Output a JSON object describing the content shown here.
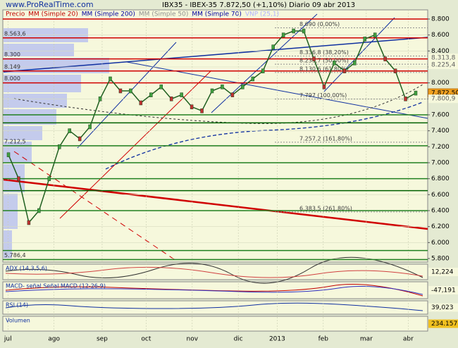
{
  "chart_data": {
    "type": "line",
    "watermark": "www.ProRealTime.com",
    "title": "IBX35 - IBEX-35   7.872,50 (+1,10%)   Diario 09 abr 2013",
    "legend": [
      "Precio",
      "MM (Simple 20)",
      "MM (Simple 200)",
      "MM (Simple 50)",
      "MM (Simple 70)",
      "VNP (25,1)"
    ],
    "legend_colors": [
      "#c00000",
      "#c00000",
      "#0000a0",
      "#909090",
      "#0000a0",
      "#b0b0ff"
    ],
    "xlim": [
      -0.5,
      41
    ],
    "xticks": [
      {
        "value": 0,
        "label": "jul"
      },
      {
        "value": 4.5,
        "label": "ago"
      },
      {
        "value": 9.2,
        "label": "sep"
      },
      {
        "value": 13.5,
        "label": "oct"
      },
      {
        "value": 18,
        "label": "nov"
      },
      {
        "value": 22.5,
        "label": "dic"
      },
      {
        "value": 26.3,
        "label": "2013"
      },
      {
        "value": 30.8,
        "label": "feb"
      },
      {
        "value": 35,
        "label": "mar"
      },
      {
        "value": 39.1,
        "label": "abr"
      }
    ],
    "ylim": [
      5800,
      8800
    ],
    "yticks": [
      {
        "value": 8800,
        "label": "8.800"
      },
      {
        "value": 8600,
        "label": "8.600"
      },
      {
        "value": 8400,
        "label": "8.400"
      },
      {
        "value": 8200,
        "label": "8.200"
      },
      {
        "value": 8000,
        "label": "8.000"
      },
      {
        "value": 7800,
        "label": "7.800"
      },
      {
        "value": 7600,
        "label": "7.600"
      },
      {
        "value": 7400,
        "label": "7.400"
      },
      {
        "value": 7200,
        "label": "7.200"
      },
      {
        "value": 7000,
        "label": "7.000"
      },
      {
        "value": 6800,
        "label": "6.800"
      },
      {
        "value": 6600,
        "label": "6.600"
      },
      {
        "value": 6400,
        "label": "6.400"
      },
      {
        "value": 6200,
        "label": "6.200"
      },
      {
        "value": 6000,
        "label": "6.000"
      },
      {
        "value": 5800,
        "label": "5.800"
      }
    ],
    "series": [
      {
        "name": "Precio",
        "color": "#206020",
        "values": [
          7100,
          6800,
          6250,
          6400,
          6800,
          7200,
          7400,
          7300,
          7450,
          7800,
          8050,
          7900,
          7900,
          7750,
          7850,
          7950,
          7800,
          7850,
          7700,
          7650,
          7900,
          7950,
          7850,
          7950,
          8050,
          8150,
          8450,
          8600,
          8650,
          8650,
          8300,
          7950,
          8250,
          8150,
          8250,
          8550,
          8600,
          8300,
          8150,
          7800,
          7872.5
        ]
      }
    ],
    "levels": [
      {
        "value": 8563.6,
        "label": "8.563,6",
        "color": "#d00000"
      },
      {
        "value": 8300,
        "label": "8.300",
        "color": "#d00000"
      },
      {
        "value": 8149,
        "label": "8.149",
        "color": "#d00000"
      },
      {
        "value": 8000,
        "label": "8.000",
        "color": "#d00000"
      },
      {
        "value": 7212.5,
        "label": "7.212,5",
        "color": "#208020"
      },
      {
        "value": 5786.4,
        "label": "5.786,4",
        "color": "#208020"
      }
    ],
    "plain_levels": [
      {
        "value": 8800,
        "color": "#d00000"
      },
      {
        "value": 7600,
        "color": "#208020"
      },
      {
        "value": 7500,
        "color": "#006000"
      },
      {
        "value": 7000,
        "color": "#208020"
      },
      {
        "value": 6800,
        "color": "#208020"
      },
      {
        "value": 6650,
        "color": "#006000"
      },
      {
        "value": 6400,
        "color": "#208020"
      },
      {
        "value": 5900,
        "color": "#208020"
      }
    ],
    "fibonacci": [
      {
        "value": 8690,
        "label": "8.690 (0,00%)"
      },
      {
        "value": 8336.8,
        "label": "8.336,8 (38,20%)"
      },
      {
        "value": 8233.7,
        "label": "8.233,7 (50,00%)"
      },
      {
        "value": 8130.6,
        "label": "8.130,6 (61,80%)"
      },
      {
        "value": 7797,
        "label": "7.797 (100,00%)"
      },
      {
        "value": 7257.2,
        "label": "7.257,2 (161,80%)"
      },
      {
        "value": 6383.5,
        "label": "6.383,5 (261,80%)"
      }
    ],
    "price_labels": [
      {
        "value": 8313.8,
        "label": "8.313,8"
      },
      {
        "value": 8225.4,
        "label": "8.225,4"
      },
      {
        "value": 7872.5,
        "label": "7.872,50"
      },
      {
        "value": 7800.9,
        "label": "7.800,9"
      }
    ],
    "panels": [
      {
        "name": "ADX (14,3,5,6)",
        "value": 12.224,
        "label": "12,224"
      },
      {
        "name": "MACD- señal Señal MACD (12-26-9)",
        "value": -47.191,
        "label": "-47,191"
      },
      {
        "name": "RSI (14)",
        "value": 39.023,
        "label": "39,023"
      },
      {
        "name": "Volumen",
        "value": 234157,
        "label": "234.157"
      }
    ]
  }
}
